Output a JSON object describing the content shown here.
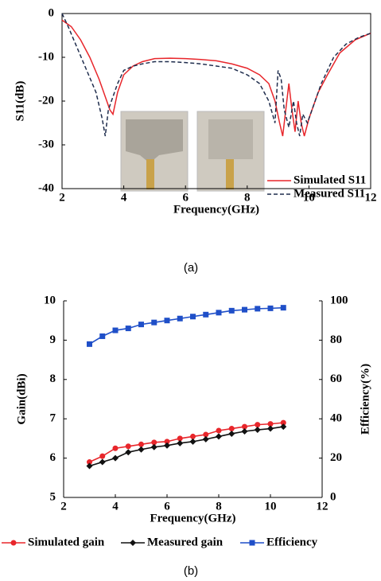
{
  "chart_data": [
    {
      "type": "line",
      "caption": "(a)",
      "xlabel": "Frequency(GHz)",
      "ylabel": "S11(dB)",
      "xlim": [
        2,
        12
      ],
      "xticks": [
        2,
        4,
        6,
        8,
        10,
        12
      ],
      "ylim": [
        -40,
        0
      ],
      "yticks": [
        0,
        -10,
        -20,
        -30,
        -40
      ],
      "legend": "lower right",
      "series": [
        {
          "name": "Simulated S11",
          "color": "#e8262b",
          "linestyle": "solid",
          "x": [
            2,
            2.3,
            2.6,
            2.9,
            3.2,
            3.4,
            3.55,
            3.65,
            3.8,
            4.0,
            4.3,
            4.6,
            5.0,
            5.5,
            6.0,
            6.5,
            7.0,
            7.5,
            8.0,
            8.4,
            8.7,
            8.9,
            9.05,
            9.15,
            9.25,
            9.35,
            9.45,
            9.55,
            9.65,
            9.75,
            9.85,
            10.0,
            10.3,
            10.6,
            11.0,
            11.5,
            12
          ],
          "values": [
            -1.5,
            -3,
            -6,
            -10,
            -15,
            -19,
            -22,
            -23,
            -18,
            -14,
            -12,
            -11,
            -10.3,
            -10.2,
            -10.3,
            -10.5,
            -10.8,
            -11.5,
            -12.5,
            -14,
            -16,
            -20,
            -25,
            -28,
            -22,
            -16,
            -22,
            -27,
            -20,
            -25,
            -28,
            -24,
            -18,
            -14,
            -9,
            -6,
            -4.5
          ]
        },
        {
          "name": "Measured S11",
          "color": "#1f2d4d",
          "linestyle": "dashed",
          "x": [
            2,
            2.2,
            2.5,
            2.8,
            3.1,
            3.3,
            3.4,
            3.5,
            3.6,
            3.8,
            4.0,
            4.3,
            4.6,
            5.0,
            5.5,
            6.0,
            6.5,
            7.0,
            7.5,
            8.0,
            8.4,
            8.7,
            8.9,
            9.0,
            9.1,
            9.2,
            9.35,
            9.5,
            9.6,
            9.7,
            9.8,
            9.95,
            10.1,
            10.4,
            10.8,
            11.2,
            11.6,
            12
          ],
          "values": [
            0,
            -3,
            -8,
            -13,
            -18,
            -24,
            -28,
            -22,
            -20,
            -16,
            -13,
            -12,
            -11.5,
            -11,
            -11,
            -11.2,
            -11.5,
            -12,
            -12.5,
            -14,
            -16,
            -20,
            -25,
            -13,
            -15,
            -22,
            -26,
            -20,
            -25,
            -28,
            -23,
            -25,
            -22,
            -16,
            -10,
            -7,
            -5.5,
            -4.5
          ]
        }
      ]
    },
    {
      "type": "line",
      "caption": "(b)",
      "xlabel": "Frequency(GHz)",
      "ylabel": "Gain(dBi)",
      "y2label": "Efficiency(%)",
      "xlim": [
        2,
        12
      ],
      "xticks": [
        2,
        4,
        6,
        8,
        10,
        12
      ],
      "ylim": [
        5,
        10
      ],
      "yticks": [
        5,
        6,
        7,
        8,
        9,
        10
      ],
      "y2lim": [
        0,
        100
      ],
      "y2ticks": [
        0,
        20,
        40,
        60,
        80,
        100
      ],
      "legend": "below",
      "series": [
        {
          "name": "Simulated gain",
          "color": "#e8262b",
          "marker": "circle",
          "x": [
            3,
            3.5,
            4,
            4.5,
            5,
            5.5,
            6,
            6.5,
            7,
            7.5,
            8,
            8.5,
            9,
            9.5,
            10,
            10.5
          ],
          "values": [
            5.9,
            6.05,
            6.25,
            6.3,
            6.35,
            6.4,
            6.42,
            6.5,
            6.55,
            6.6,
            6.7,
            6.75,
            6.8,
            6.85,
            6.87,
            6.9
          ]
        },
        {
          "name": "Measured gain",
          "color": "#111111",
          "marker": "diamond",
          "x": [
            3,
            3.5,
            4,
            4.5,
            5,
            5.5,
            6,
            6.5,
            7,
            7.5,
            8,
            8.5,
            9,
            9.5,
            10,
            10.5
          ],
          "values": [
            5.8,
            5.9,
            6.0,
            6.15,
            6.22,
            6.28,
            6.32,
            6.38,
            6.42,
            6.48,
            6.55,
            6.62,
            6.68,
            6.72,
            6.75,
            6.8
          ]
        },
        {
          "name": "Efficiency",
          "color": "#1f4fc8",
          "marker": "square",
          "axis": "y2",
          "x": [
            3,
            3.5,
            4,
            4.5,
            5,
            5.5,
            6,
            6.5,
            7,
            7.5,
            8,
            8.5,
            9,
            9.5,
            10,
            10.5
          ],
          "values": [
            78,
            82,
            85,
            86,
            88,
            89,
            90,
            91,
            92,
            93,
            94,
            95,
            95.5,
            96,
            96.2,
            96.5
          ]
        }
      ]
    }
  ]
}
